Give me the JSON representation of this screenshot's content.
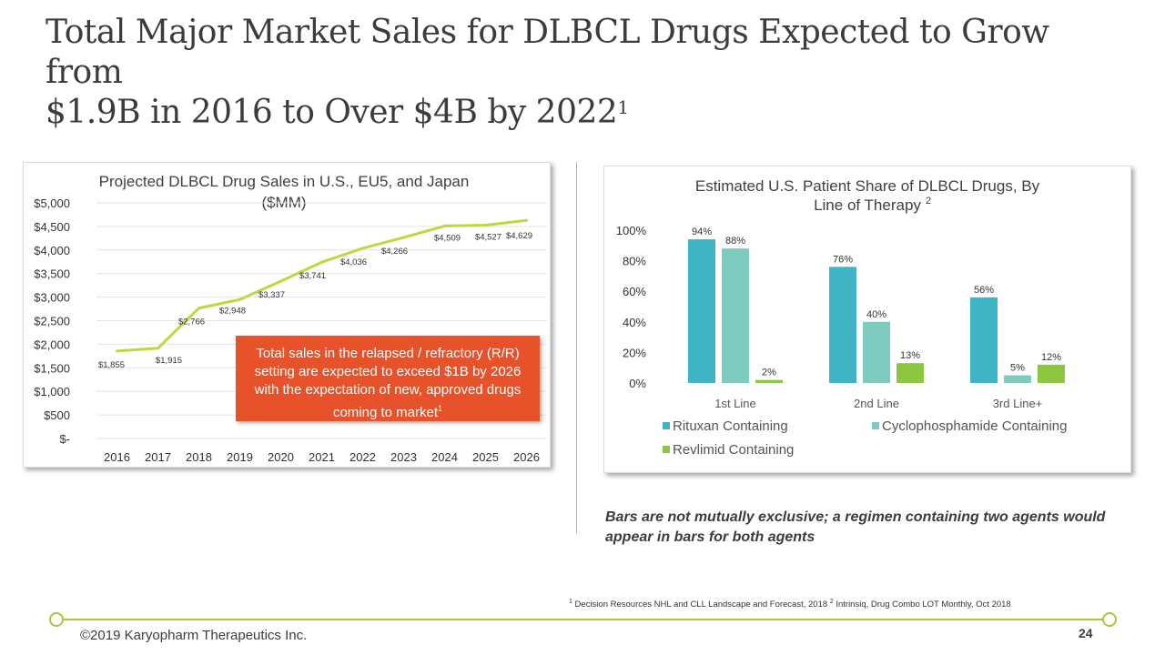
{
  "title": {
    "line1": "Total Major Market Sales for DLBCL Drugs Expected to Grow from",
    "line2": "$1.9B in 2016 to Over $4B by 2022",
    "sup": "1"
  },
  "chart_data": [
    {
      "type": "line",
      "title": "Projected DLBCL Drug Sales in U.S., EU5, and Japan",
      "subtitle": "($MM)",
      "x": [
        "2016",
        "2017",
        "2018",
        "2019",
        "2020",
        "2021",
        "2022",
        "2023",
        "2024",
        "2025",
        "2026"
      ],
      "series": [
        {
          "values": [
            1855,
            1915,
            2766,
            2948,
            3337,
            3741,
            4036,
            4266,
            4509,
            4527,
            4629
          ],
          "labels": [
            "$1,855",
            "$1,915",
            "$2,766",
            "$2,948",
            "$3,337",
            "$3,741",
            "$4,036",
            "$4,266",
            "$4,509",
            "$4,527",
            "$4,629"
          ],
          "color": "#c2d640"
        }
      ],
      "y_ticks": [
        "$5,000",
        "$4,500",
        "$4,000",
        "$3,500",
        "$3,000",
        "$2,500",
        "$2,000",
        "$1,500",
        "$1,000",
        "$500",
        "$-"
      ],
      "ylim": [
        0,
        5000
      ],
      "grid": true
    },
    {
      "type": "bar",
      "title": "Estimated U.S. Patient Share of DLBCL Drugs, By",
      "title_line2": "Line of Therapy",
      "title_sup": "2",
      "categories": [
        "1st Line",
        "2nd Line",
        "3rd Line+"
      ],
      "series": [
        {
          "name": "Rituxan Containing",
          "values": [
            94,
            76,
            56
          ],
          "labels": [
            "94%",
            "76%",
            "56%"
          ],
          "color": "#3fb4c4"
        },
        {
          "name": "Cyclophosphamide Containing",
          "values": [
            88,
            40,
            5
          ],
          "labels": [
            "88%",
            "40%",
            "5%"
          ],
          "color": "#7ecbc0"
        },
        {
          "name": "Revlimid Containing",
          "values": [
            2,
            13,
            12
          ],
          "labels": [
            "2%",
            "13%",
            "12%"
          ],
          "color": "#8dc63f"
        }
      ],
      "y_ticks": [
        "100%",
        "80%",
        "60%",
        "40%",
        "20%",
        "0%"
      ],
      "ylim": [
        0,
        100
      ],
      "grid": false,
      "legend_position": "bottom"
    }
  ],
  "callout": {
    "line1": "Total sales in the relapsed / refractory (R/R)",
    "line2": "setting are expected to exceed $1B by 2026",
    "line3": "with the expectation of new, approved drugs",
    "line4": "coming to market",
    "line4_sup": "1",
    "color": "#e8522a"
  },
  "note": "Bars are not mutually exclusive; a regimen containing two agents would appear in bars for both agents",
  "footnote": {
    "sup1": "1",
    "text1": "Decision Resources NHL and CLL Landscape and Forecast, 2018",
    "sup2": "2",
    "text2": "Intrinsiq, Drug Combo LOT Monthly, Oct 2018"
  },
  "footer": {
    "copyright": "©2019 Karyopharm Therapeutics Inc.",
    "page": "24"
  }
}
